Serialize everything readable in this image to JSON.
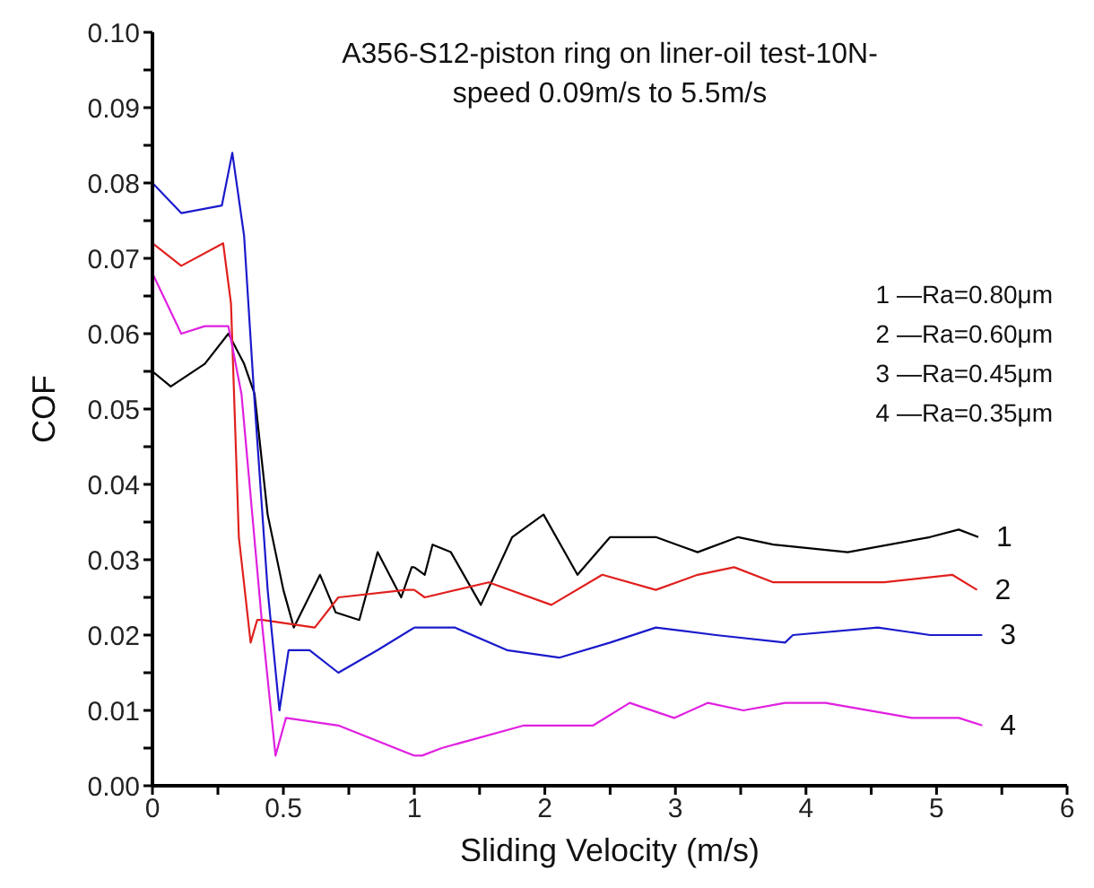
{
  "chart_data": [
    {
      "type": "line",
      "ylabel": "COF",
      "xlim": [
        0,
        1
      ],
      "xticks": [
        0,
        {
          "value": 0.25,
          "label": null
        },
        0.5,
        {
          "value": 0.75,
          "label": null
        },
        1
      ],
      "ylim": [
        0,
        0.1
      ],
      "yticks": [
        {
          "value": 0,
          "label": "0.00"
        },
        {
          "value": 0.005,
          "label": null
        },
        {
          "value": 0.01,
          "label": "0.01"
        },
        {
          "value": 0.015,
          "label": null
        },
        {
          "value": 0.02,
          "label": "0.02"
        },
        {
          "value": 0.025,
          "label": null
        },
        {
          "value": 0.03,
          "label": "0.03"
        },
        {
          "value": 0.035,
          "label": null
        },
        {
          "value": 0.04,
          "label": "0.04"
        },
        {
          "value": 0.045,
          "label": null
        },
        {
          "value": 0.05,
          "label": "0.05"
        },
        {
          "value": 0.055,
          "label": null
        },
        {
          "value": 0.06,
          "label": "0.06"
        },
        {
          "value": 0.065,
          "label": null
        },
        {
          "value": 0.07,
          "label": "0.07"
        },
        {
          "value": 0.075,
          "label": null
        },
        {
          "value": 0.08,
          "label": "0.08"
        },
        {
          "value": 0.085,
          "label": null
        },
        {
          "value": 0.09,
          "label": "0.09"
        },
        {
          "value": 0.095,
          "label": null
        },
        {
          "value": 0.1,
          "label": "0.10"
        }
      ],
      "grid": false,
      "marker": "none",
      "line_style": "solid",
      "series": [
        {
          "color": "#000000",
          "x": [
            0,
            0.07,
            0.2,
            0.29,
            0.35,
            0.39,
            0.44,
            0.5,
            0.54,
            0.64,
            0.7,
            0.79,
            0.86,
            0.95,
            0.99,
            1
          ],
          "values": [
            0.055,
            0.053,
            0.056,
            0.06,
            0.056,
            0.052,
            0.036,
            0.026,
            0.021,
            0.028,
            0.023,
            0.022,
            0.031,
            0.025,
            0.029,
            0.029
          ]
        },
        {
          "color": "#e0201e",
          "x": [
            0,
            0.11,
            0.27,
            0.3,
            0.33,
            0.375,
            0.4,
            0.42,
            0.62,
            0.71,
            0.97,
            1
          ],
          "values": [
            0.072,
            0.069,
            0.072,
            0.064,
            0.033,
            0.019,
            0.022,
            0.022,
            0.021,
            0.025,
            0.026,
            0.026
          ]
        },
        {
          "color": "#1a1acc",
          "x": [
            0,
            0.11,
            0.265,
            0.305,
            0.35,
            0.39,
            0.44,
            0.485,
            0.52,
            0.6,
            0.71,
            0.86,
            1
          ],
          "values": [
            0.08,
            0.076,
            0.077,
            0.084,
            0.073,
            0.051,
            0.026,
            0.01,
            0.018,
            0.018,
            0.015,
            0.018,
            0.021
          ]
        },
        {
          "color": "#e020e0",
          "x": [
            0,
            0.11,
            0.2,
            0.29,
            0.34,
            0.42,
            0.47,
            0.51,
            0.71,
            1
          ],
          "values": [
            0.068,
            0.06,
            0.061,
            0.061,
            0.052,
            0.021,
            0.004,
            0.009,
            0.008,
            0.004
          ]
        }
      ]
    },
    {
      "type": "line",
      "title": "A356-S12-piston ring on liner-oil test-10N-speed 0.09m/s to 5.5m/s",
      "xlabel": "Sliding Velocity (m/s)",
      "xlim": [
        1,
        6
      ],
      "xticks": [
        {
          "value": 1.5,
          "label": null
        },
        2,
        {
          "value": 2.5,
          "label": null
        },
        3,
        {
          "value": 3.5,
          "label": null
        },
        4,
        {
          "value": 4.5,
          "label": null
        },
        5,
        {
          "value": 5.5,
          "label": null
        },
        6
      ],
      "ylim": [
        0,
        0.1
      ],
      "tick_labels": "x",
      "grid": false,
      "marker": "none",
      "line_style": "solid",
      "annotations": [
        "1 —Ra=0.80μm",
        "2 —Ra=0.60μm",
        "3 —Ra=0.45μm",
        "4 —Ra=0.35μm"
      ],
      "series": [
        {
          "name": "1",
          "color": "#000000",
          "x": [
            1,
            1.08,
            1.14,
            1.28,
            1.51,
            1.75,
            1.99,
            2.25,
            2.5,
            2.85,
            3.17,
            3.48,
            3.75,
            4.32,
            4.95,
            5.17,
            5.32
          ],
          "values": [
            0.029,
            0.028,
            0.032,
            0.031,
            0.024,
            0.033,
            0.036,
            0.028,
            0.033,
            0.033,
            0.031,
            0.033,
            0.032,
            0.031,
            0.033,
            0.034,
            0.033
          ]
        },
        {
          "name": "2",
          "color": "#e0201e",
          "x": [
            1,
            1.08,
            1.57,
            2.05,
            2.44,
            2.85,
            3.17,
            3.45,
            3.75,
            4.15,
            4.6,
            5.12,
            5.31
          ],
          "values": [
            0.026,
            0.025,
            0.027,
            0.024,
            0.028,
            0.026,
            0.028,
            0.029,
            0.027,
            0.027,
            0.027,
            0.028,
            0.026
          ]
        },
        {
          "name": "3",
          "color": "#1a1acc",
          "x": [
            1,
            1.04,
            1.31,
            1.71,
            2.11,
            2.5,
            2.85,
            3.31,
            3.84,
            3.9,
            4.55,
            4.95,
            5.35
          ],
          "values": [
            0.021,
            0.021,
            0.021,
            0.018,
            0.017,
            0.019,
            0.021,
            0.02,
            0.019,
            0.02,
            0.021,
            0.02,
            0.02
          ]
        },
        {
          "name": "4",
          "color": "#e020e0",
          "x": [
            1,
            1.06,
            1.21,
            1.84,
            2.37,
            2.65,
            2.99,
            3.25,
            3.52,
            3.84,
            4.15,
            4.81,
            5.17,
            5.35
          ],
          "values": [
            0.004,
            0.004,
            0.005,
            0.008,
            0.008,
            0.011,
            0.009,
            0.011,
            0.01,
            0.011,
            0.011,
            0.009,
            0.009,
            0.008
          ]
        }
      ]
    }
  ]
}
